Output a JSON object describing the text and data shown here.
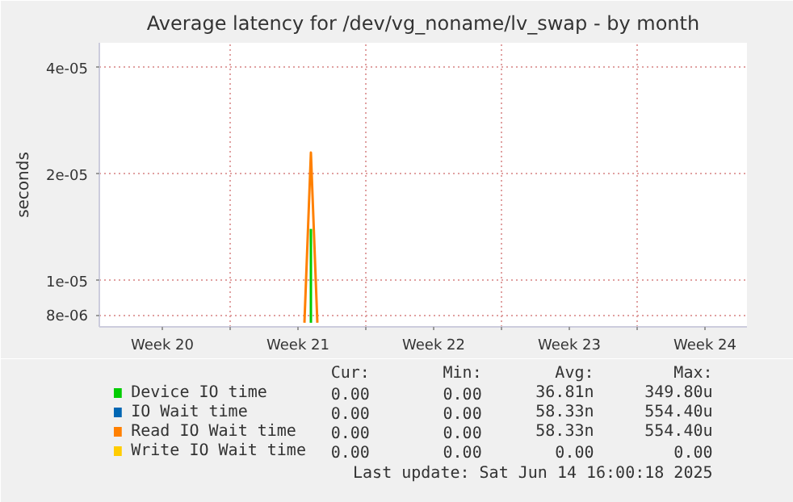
{
  "chart_data": {
    "type": "line",
    "title": "Average latency for /dev/vg_noname/lv_swap - by month",
    "ylabel": "seconds",
    "log": true,
    "grid": true,
    "legend": "bottom",
    "series": [
      {
        "name": "Device IO time",
        "color": "#00cc00",
        "x": [
          "2025-05-23T04:00",
          "2025-05-23T04:00"
        ],
        "values": [
          7.6e-06,
          1.4e-05
        ]
      },
      {
        "name": "IO Wait time",
        "color": "#0066b3"
      },
      {
        "name": "Read IO Wait time",
        "color": "#ff8000",
        "x": [
          "2025-05-22T20:00",
          "2025-05-23T04:00",
          "2025-05-23T12:00"
        ],
        "values": [
          7.6e-06,
          2.3e-05,
          7.6e-06
        ]
      },
      {
        "name": "Write IO Wait time",
        "color": "#ffcc00"
      }
    ],
    "xlim": [
      "2025-05-12T06:00",
      "2025-06-14T16:00"
    ],
    "ylim": [
      7.4e-06,
      4.7e-05
    ],
    "xticks": [
      {
        "value": "2025-05-15T12:00",
        "label": "Week 20"
      },
      {
        "value": "2025-05-19",
        "label": null
      },
      {
        "value": "2025-05-22T12:00",
        "label": "Week 21"
      },
      {
        "value": "2025-05-26",
        "label": null
      },
      {
        "value": "2025-05-29T12:00",
        "label": "Week 22"
      },
      {
        "value": "2025-06-02",
        "label": null
      },
      {
        "value": "2025-06-05T12:00",
        "label": "Week 23"
      },
      {
        "value": "2025-06-09",
        "label": null
      },
      {
        "value": "2025-06-12T12:00",
        "label": "Week 24"
      }
    ],
    "yticks": [
      {
        "value": 8e-06,
        "label": "8e-06"
      },
      {
        "value": 1e-05,
        "label": "1e-05"
      },
      {
        "value": 2e-05,
        "label": "2e-05"
      },
      {
        "value": 4e-05,
        "label": "4e-05"
      }
    ],
    "annotations": [
      "Cur:",
      "Min:",
      "Avg:",
      "Max:",
      "0.00",
      "0.00",
      "36.81n",
      "349.80u",
      "0.00",
      "0.00",
      "58.33n",
      "554.40u",
      "0.00",
      "0.00",
      "58.33n",
      "554.40u",
      "0.00",
      "0.00",
      "0.00",
      "0.00",
      "Last update: Sat Jun 14 16:00:18 2025"
    ]
  }
}
